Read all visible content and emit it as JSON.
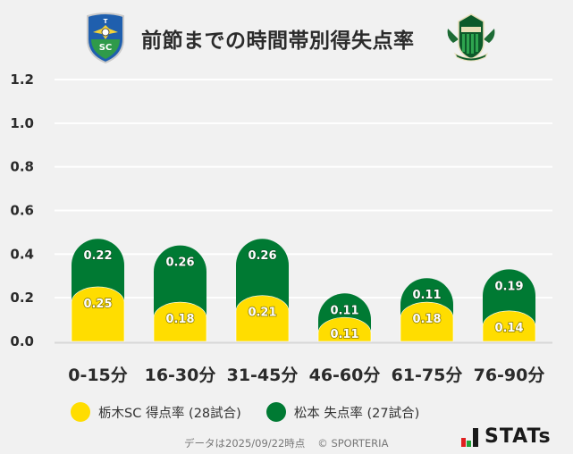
{
  "header": {
    "title": "前節までの時間帯別得失点率",
    "home_logo": "tochigi-sc-crest",
    "away_logo": "matsumoto-yamaga-crest"
  },
  "legend": [
    {
      "label": "栃木SC 得点率 (28試合)",
      "color": "#ffdd00"
    },
    {
      "label": "松本 失点率 (27試合)",
      "color": "#007a33"
    }
  ],
  "footer": {
    "note": "データは2025/09/22時点",
    "copyright": "© SPORTERIA",
    "brand": "STATs"
  },
  "colors": {
    "background": "#f1f1f1",
    "home": "#ffdd00",
    "away": "#007a33",
    "grid": "#ffffff",
    "axis": "#d8d8d8"
  },
  "chart_data": {
    "type": "bar",
    "stacked": true,
    "title": "前節までの時間帯別得失点率",
    "xlabel": "",
    "ylabel": "",
    "ylim": [
      0,
      1.2
    ],
    "yticks": [
      "0.0",
      "0.2",
      "0.4",
      "0.6",
      "0.8",
      "1.0",
      "1.2"
    ],
    "grid": true,
    "legend_position": "bottom",
    "categories": [
      "0-15分",
      "16-30分",
      "31-45分",
      "46-60分",
      "61-75分",
      "76-90分"
    ],
    "series": [
      {
        "name": "栃木SC 得点率 (28試合)",
        "color": "#ffdd00",
        "values": [
          0.25,
          0.18,
          0.21,
          0.11,
          0.18,
          0.14
        ]
      },
      {
        "name": "松本 失点率 (27試合)",
        "color": "#007a33",
        "values": [
          0.22,
          0.26,
          0.26,
          0.11,
          0.11,
          0.19
        ]
      }
    ]
  }
}
